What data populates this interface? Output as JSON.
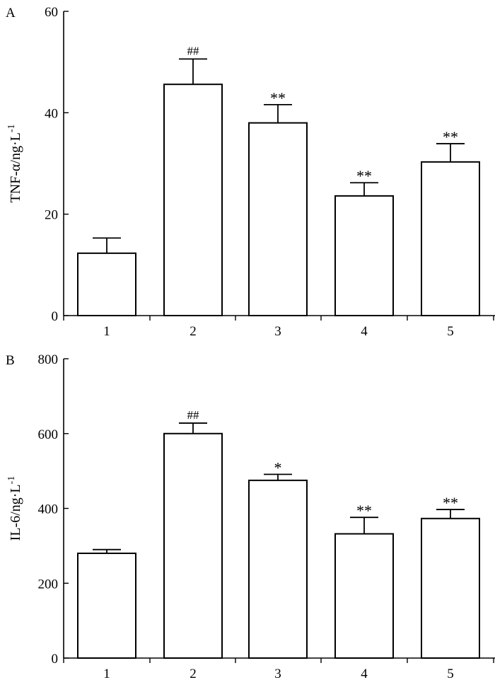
{
  "chart_data": [
    {
      "panel_label": "A",
      "type": "bar",
      "ylabel_main": "TNF-α/ng·L",
      "ylabel_sup": "-1",
      "categories": [
        "1",
        "2",
        "3",
        "4",
        "5"
      ],
      "values": [
        12.3,
        45.6,
        38.0,
        23.6,
        30.3
      ],
      "errors": [
        3.0,
        5.0,
        3.6,
        2.6,
        3.6
      ],
      "annotations": [
        "",
        "##",
        "**",
        "**",
        "**"
      ],
      "ylim": [
        0,
        60
      ],
      "yticks": [
        0,
        20,
        40,
        60
      ],
      "ytick_labels": [
        "0",
        "20",
        "40",
        "60"
      ]
    },
    {
      "panel_label": "B",
      "type": "bar",
      "ylabel_main": "IL-6/ng·L",
      "ylabel_sup": "-1",
      "categories": [
        "1",
        "2",
        "3",
        "4",
        "5"
      ],
      "values": [
        280,
        600,
        475,
        332,
        373
      ],
      "errors": [
        10,
        28,
        16,
        44,
        24
      ],
      "annotations": [
        "",
        "##",
        "*",
        "**",
        "**"
      ],
      "ylim": [
        0,
        800
      ],
      "yticks": [
        0,
        200,
        400,
        600,
        800
      ],
      "ytick_labels": [
        "0",
        "200",
        "400",
        "600",
        "800"
      ]
    }
  ]
}
